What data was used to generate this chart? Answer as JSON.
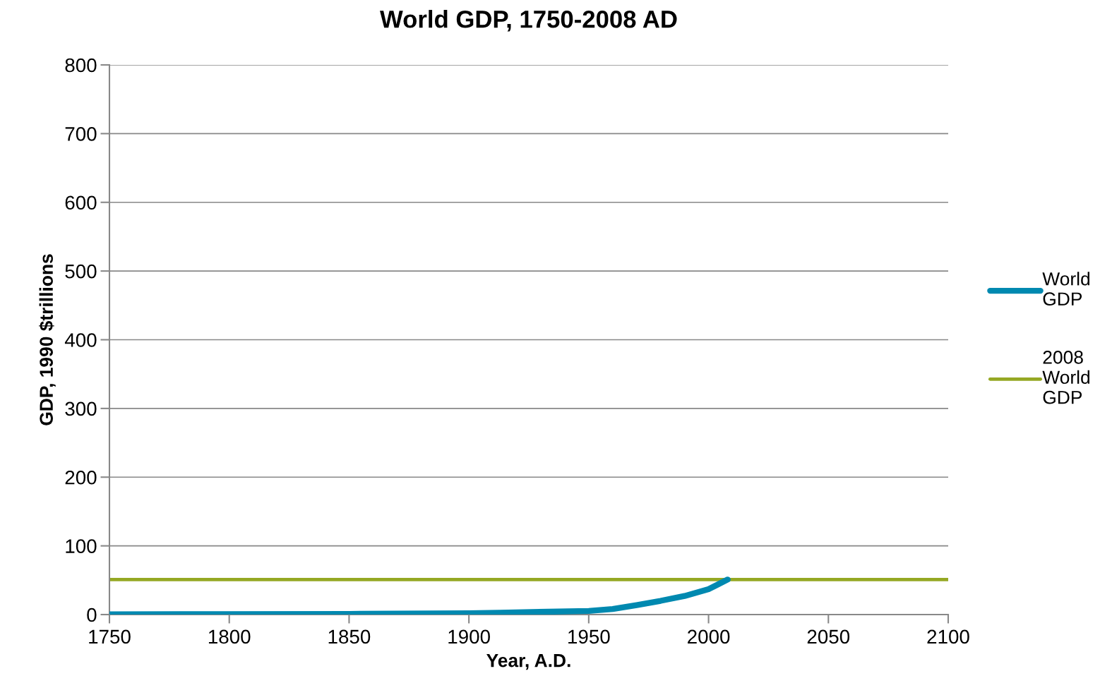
{
  "chart_data": {
    "type": "line",
    "title": "World GDP, 1750-2008 AD",
    "xlabel": "Year, A.D.",
    "ylabel": "GDP, 1990 $trillions",
    "series": [
      {
        "name": "World GDP",
        "color": "#0089b0",
        "x": [
          1750,
          1800,
          1850,
          1900,
          1913,
          1950,
          1960,
          1970,
          1980,
          1990,
          2000,
          2008
        ],
        "values": [
          0.4,
          0.6,
          0.9,
          2.0,
          2.7,
          5.3,
          8,
          13.8,
          20,
          27,
          37,
          51
        ]
      },
      {
        "name": "2008 World GDP",
        "color": "#95a823",
        "x": [
          1750,
          2100
        ],
        "values": [
          51,
          51
        ]
      }
    ],
    "xlim": [
      1750,
      2100
    ],
    "xticks": [
      1750,
      1800,
      1850,
      1900,
      1950,
      2000,
      2050,
      2100
    ],
    "ylim": [
      0,
      800
    ],
    "yticks": [
      0,
      100,
      200,
      300,
      400,
      500,
      600,
      700,
      800
    ],
    "grid": "y",
    "legend": "right",
    "marker": "none",
    "line_style": "solid"
  }
}
